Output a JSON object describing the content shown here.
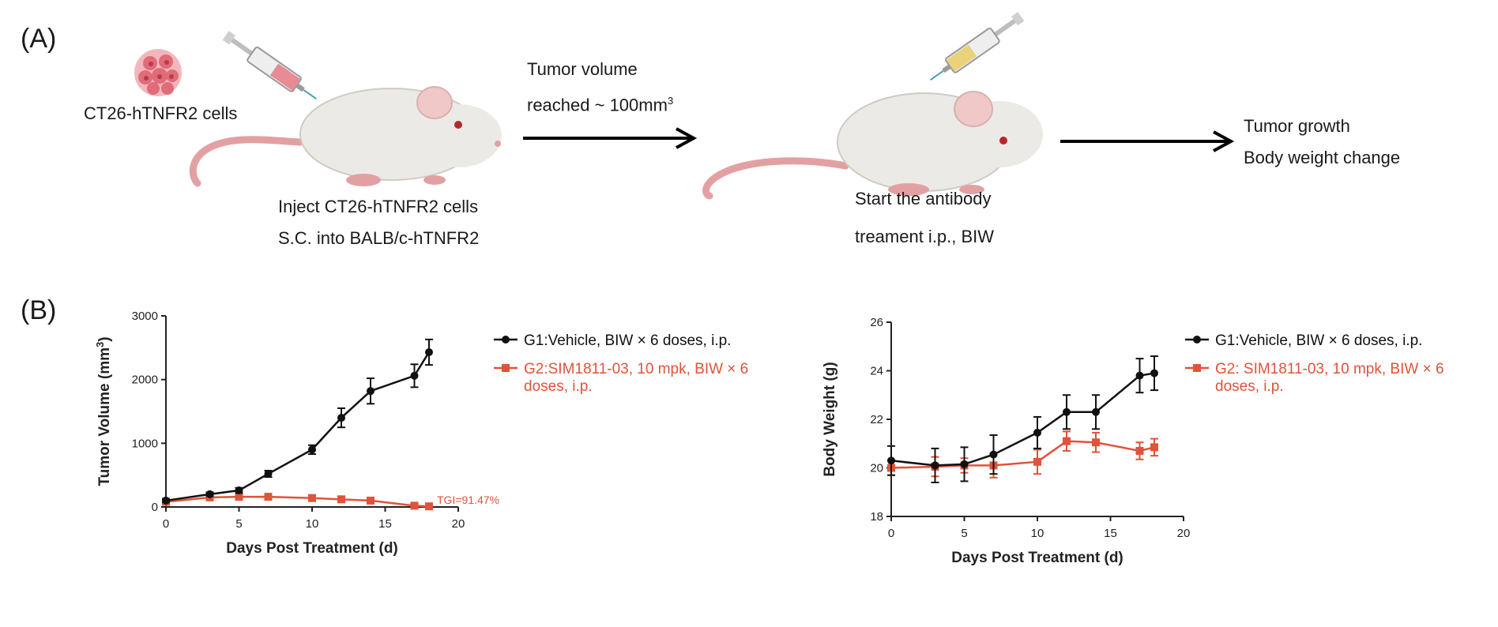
{
  "panel_a": {
    "label": "(A)",
    "cell_label": "CT26-hTNFR2 cells",
    "inject_lines": [
      "Inject CT26-hTNFR2 cells",
      "S.C. into BALB/c-hTNFR2"
    ],
    "tumor_lines": [
      "Tumor volume",
      "reached ~ 100mm"
    ],
    "tumor_sup": "3",
    "start_lines": [
      "Start the antibody",
      "treament i.p., BIW"
    ],
    "outcome_lines": [
      "Tumor growth",
      "Body weight change"
    ]
  },
  "panel_b": {
    "label": "(B)"
  },
  "colors": {
    "g1": "#111111",
    "g2": "#e0533a"
  },
  "chart_data": [
    {
      "type": "line",
      "title": "",
      "xlabel": "Days Post Treatment (d)",
      "ylabel": "Tumor Volume (mm",
      "ylabel_sup": "3",
      "ylabel_tail": ")",
      "xlim": [
        0,
        20
      ],
      "ylim": [
        0,
        3000
      ],
      "xticks": [
        0,
        5,
        10,
        15,
        20
      ],
      "yticks": [
        0,
        1000,
        2000,
        3000
      ],
      "legend_position": "top-right",
      "annotation": {
        "text": "TGI=91.47%",
        "x": 18,
        "y": 0
      },
      "series": [
        {
          "name": "G1:Vehicle, BIW × 6 doses, i.p.",
          "name_lines": [
            "G1:Vehicle, BIW × 6 doses, i.p."
          ],
          "color": "#111111",
          "marker": "circle",
          "x": [
            0,
            3,
            5,
            7,
            10,
            12,
            14,
            17,
            18
          ],
          "y": [
            100,
            200,
            260,
            520,
            900,
            1400,
            1820,
            2060,
            2430
          ],
          "err": [
            30,
            30,
            40,
            50,
            70,
            150,
            200,
            180,
            200
          ]
        },
        {
          "name": "G2:SIM1811-03, 10 mpk, BIW × 6 doses, i.p.",
          "name_lines": [
            "G2:SIM1811-03, 10 mpk, BIW × 6",
            "doses, i.p."
          ],
          "color": "#e0533a",
          "marker": "square",
          "x": [
            0,
            3,
            5,
            7,
            10,
            12,
            14,
            17,
            18
          ],
          "y": [
            80,
            150,
            160,
            160,
            140,
            120,
            100,
            20,
            10
          ],
          "err": [
            20,
            30,
            30,
            40,
            30,
            30,
            30,
            10,
            10
          ]
        }
      ]
    },
    {
      "type": "line",
      "title": "",
      "xlabel": "Days Post Treatment (d)",
      "ylabel": "Body Weight (g)",
      "xlim": [
        0,
        20
      ],
      "ylim": [
        18,
        26
      ],
      "xticks": [
        0,
        5,
        10,
        15,
        20
      ],
      "yticks": [
        18,
        20,
        22,
        24,
        26
      ],
      "legend_position": "top-right",
      "series": [
        {
          "name": "G1:Vehicle, BIW × 6 doses, i.p.",
          "name_lines": [
            "G1:Vehicle, BIW × 6 doses, i.p."
          ],
          "color": "#111111",
          "marker": "circle",
          "x": [
            0,
            3,
            5,
            7,
            10,
            12,
            14,
            17,
            18
          ],
          "y": [
            20.3,
            20.1,
            20.15,
            20.55,
            21.45,
            22.3,
            22.3,
            23.8,
            23.9
          ],
          "err": [
            0.6,
            0.7,
            0.7,
            0.8,
            0.65,
            0.7,
            0.7,
            0.7,
            0.7
          ]
        },
        {
          "name": "G2: SIM1811-03, 10 mpk, BIW × 6 doses, i.p.",
          "name_lines": [
            "G2: SIM1811-03, 10 mpk, BIW × 6",
            "doses, i.p."
          ],
          "color": "#e0533a",
          "marker": "square",
          "x": [
            0,
            3,
            5,
            7,
            10,
            12,
            14,
            17,
            18
          ],
          "y": [
            20.0,
            20.05,
            20.1,
            20.1,
            20.25,
            21.1,
            21.05,
            20.7,
            20.85
          ],
          "err": [
            0.3,
            0.4,
            0.3,
            0.5,
            0.5,
            0.4,
            0.4,
            0.35,
            0.35
          ]
        }
      ]
    }
  ]
}
